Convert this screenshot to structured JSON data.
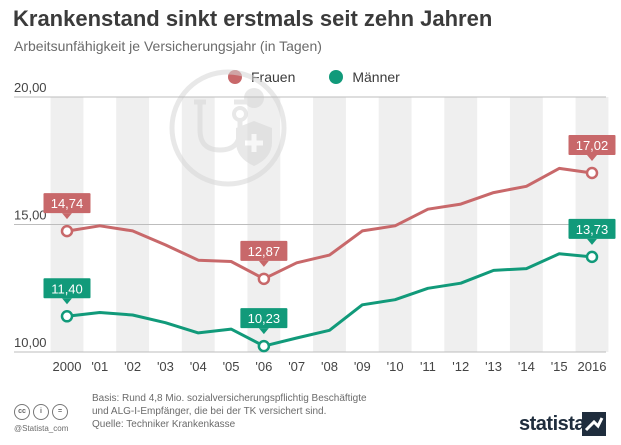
{
  "header": {
    "title": "Krankenstand sinkt erstmals seit zehn Jahren",
    "subtitle": "Arbeitsunfähigkeit je Versicherungsjahr (in Tagen)"
  },
  "chart_data": {
    "type": "line",
    "categories": [
      "2000",
      "'01",
      "'02",
      "'03",
      "'04",
      "'05",
      "'06",
      "'07",
      "'08",
      "'09",
      "'10",
      "'11",
      "'12",
      "'13",
      "'14",
      "'15",
      "2016"
    ],
    "series": [
      {
        "name": "Frauen",
        "color": "#c8686a",
        "values": [
          14.74,
          14.95,
          14.75,
          14.2,
          13.6,
          13.55,
          12.87,
          13.5,
          13.8,
          14.75,
          14.95,
          15.6,
          15.8,
          16.25,
          16.5,
          17.2,
          17.02
        ],
        "labeled": [
          0,
          6,
          16
        ],
        "labels": [
          "14,74",
          "12,87",
          "17,02"
        ]
      },
      {
        "name": "Männer",
        "color": "#119a7a",
        "values": [
          11.4,
          11.55,
          11.45,
          11.15,
          10.75,
          10.9,
          10.23,
          10.55,
          10.85,
          11.85,
          12.05,
          12.5,
          12.7,
          13.2,
          13.27,
          13.85,
          13.73
        ],
        "labeled": [
          0,
          6,
          16
        ],
        "labels": [
          "11,40",
          "10,23",
          "13,73"
        ]
      }
    ],
    "ylim": [
      10,
      20
    ],
    "yticks": [
      10,
      15,
      20
    ],
    "ytick_labels": [
      "10,00",
      "15,00",
      "20,00"
    ],
    "legend_position": "top-center",
    "grid": true
  },
  "footer": {
    "basis_line1": "Basis: Rund 4,8 Mio. sozialversicherungspflichtig Beschäftigte",
    "basis_line2": "und ALG-I-Empfänger, die bei der TK versichert sind.",
    "source": "Quelle: Techniker Krankenkasse",
    "credit": "@Statista_com",
    "brand": "statista",
    "cc_icons": [
      "cc",
      "i",
      "="
    ]
  }
}
